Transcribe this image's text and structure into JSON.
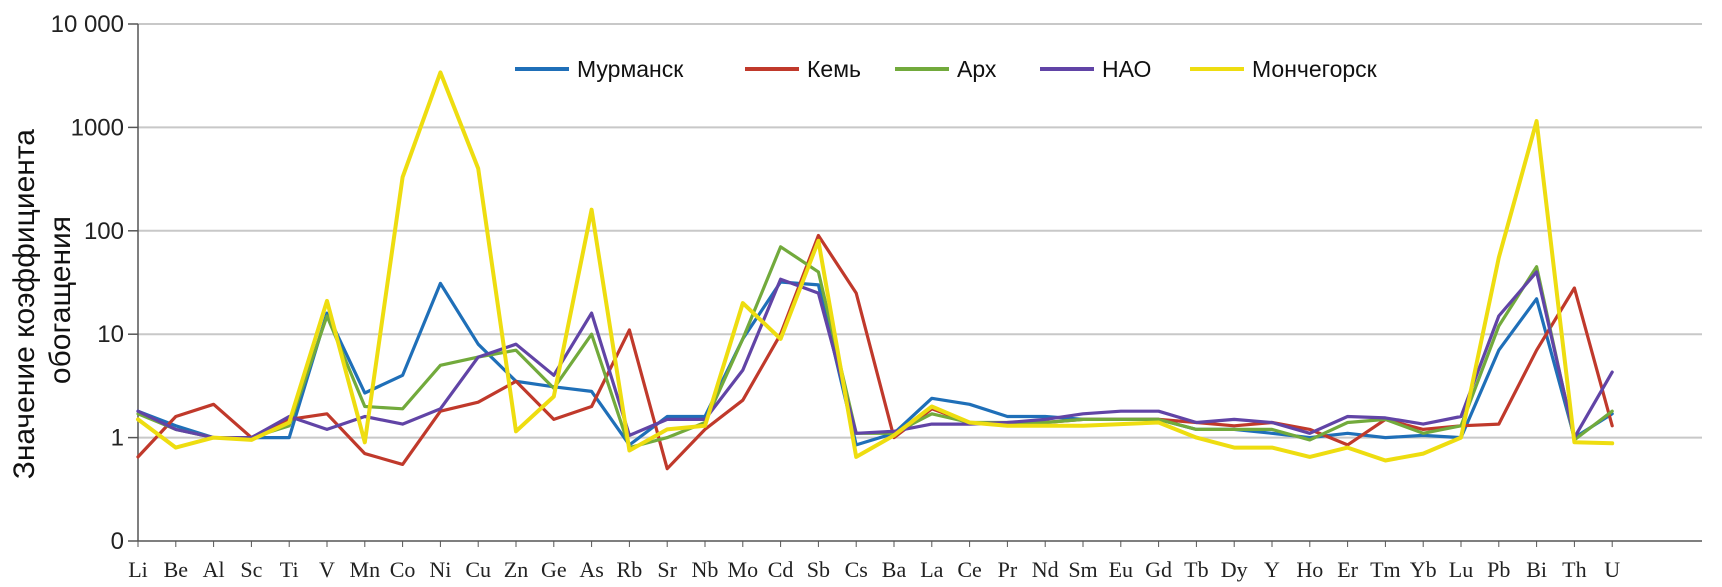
{
  "chart_data": {
    "type": "line",
    "title": "",
    "xlabel": "",
    "ylabel_lines": [
      "Значение коэффициента",
      "обогащения"
    ],
    "y_scale": "log",
    "ylim": [
      0.1,
      10000
    ],
    "yticks": [
      {
        "value": 0.1,
        "label": "0"
      },
      {
        "value": 1,
        "label": "1"
      },
      {
        "value": 10,
        "label": "10"
      },
      {
        "value": 100,
        "label": "100"
      },
      {
        "value": 1000,
        "label": "1000"
      },
      {
        "value": 10000,
        "label": "10 000"
      }
    ],
    "grid": true,
    "legend_position": "top-center",
    "categories": [
      "Li",
      "Be",
      "Al",
      "Sc",
      "Ti",
      "V",
      "Mn",
      "Co",
      "Ni",
      "Cu",
      "Zn",
      "Ge",
      "As",
      "Rb",
      "Sr",
      "Nb",
      "Mo",
      "Cd",
      "Sb",
      "Cs",
      "Ba",
      "La",
      "Ce",
      "Pr",
      "Nd",
      "Sm",
      "Eu",
      "Gd",
      "Tb",
      "Dy",
      "Y",
      "Ho",
      "Er",
      "Tm",
      "Yb",
      "Lu",
      "Pb",
      "Bi",
      "Th",
      "U"
    ],
    "series": [
      {
        "name": "Мурманск",
        "color": "#1f6fb8",
        "values": [
          1.8,
          1.3,
          1.0,
          1.0,
          1.0,
          16,
          2.7,
          4.0,
          31,
          8.0,
          3.5,
          3.1,
          2.8,
          0.85,
          1.6,
          1.6,
          9.0,
          32,
          30,
          0.85,
          1.1,
          2.4,
          2.1,
          1.6,
          1.6,
          1.5,
          1.5,
          1.5,
          1.2,
          1.2,
          1.1,
          1.0,
          1.1,
          1.0,
          1.05,
          1.0,
          7.0,
          22,
          1.0,
          1.7
        ]
      },
      {
        "name": "Кемь",
        "color": "#c0392b",
        "values": [
          0.65,
          1.6,
          2.1,
          1.0,
          1.5,
          1.7,
          0.7,
          0.55,
          1.8,
          2.2,
          3.5,
          1.5,
          2.0,
          11,
          0.5,
          1.2,
          2.3,
          10,
          90,
          25,
          1.0,
          1.9,
          1.4,
          1.3,
          1.4,
          1.5,
          1.5,
          1.5,
          1.4,
          1.3,
          1.4,
          1.2,
          0.85,
          1.5,
          1.2,
          1.3,
          1.35,
          7.0,
          28,
          1.3
        ]
      },
      {
        "name": "Арх",
        "color": "#72aa3c",
        "values": [
          1.7,
          1.2,
          1.0,
          1.0,
          1.3,
          15,
          2.0,
          1.9,
          5.0,
          6.0,
          7.0,
          3.0,
          10,
          0.8,
          1.0,
          1.4,
          9.0,
          70,
          40,
          1.1,
          1.1,
          1.7,
          1.4,
          1.4,
          1.4,
          1.5,
          1.5,
          1.5,
          1.2,
          1.2,
          1.2,
          0.95,
          1.4,
          1.5,
          1.1,
          1.3,
          12,
          45,
          0.95,
          1.8
        ]
      },
      {
        "name": "НАО",
        "color": "#6144a6",
        "values": [
          1.8,
          1.2,
          1.0,
          1.0,
          1.6,
          1.2,
          1.6,
          1.35,
          1.9,
          6.0,
          8.0,
          4.0,
          16,
          1.05,
          1.5,
          1.5,
          4.5,
          34,
          25,
          1.1,
          1.15,
          1.35,
          1.35,
          1.4,
          1.5,
          1.7,
          1.8,
          1.8,
          1.4,
          1.5,
          1.4,
          1.1,
          1.6,
          1.55,
          1.35,
          1.6,
          15,
          40,
          1.0,
          4.3
        ]
      },
      {
        "name": "Мончегорск",
        "color": "#eedd10",
        "values": [
          1.5,
          0.8,
          1.0,
          0.95,
          1.4,
          21,
          0.9,
          330,
          3400,
          400,
          1.15,
          2.5,
          160,
          0.75,
          1.2,
          1.3,
          20,
          9.0,
          80,
          0.65,
          1.05,
          2.0,
          1.4,
          1.3,
          1.3,
          1.3,
          1.35,
          1.4,
          1.0,
          0.8,
          0.8,
          0.65,
          0.8,
          0.6,
          0.7,
          1.0,
          55,
          1150,
          0.9,
          0.88
        ]
      }
    ]
  }
}
